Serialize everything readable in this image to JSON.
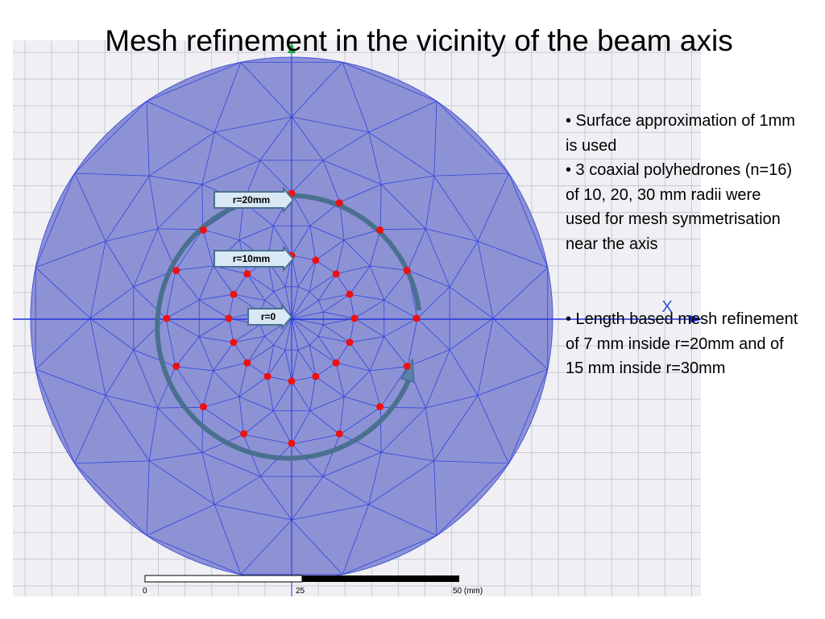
{
  "title": "Mesh refinement in the vicinity of the beam axis",
  "bullets": [
    "• Surface approximation of 1mm is used",
    "• 3 coaxial polyhedrones (n=16) of 10, 20, 30 mm radii were used for mesh symmetrisation near the axis",
    "• Length based mesh refinement of 7 mm inside r=20mm and of 15 mm inside r=30mm"
  ],
  "figure": {
    "radius_labels": [
      "r=20mm",
      "r=10mm",
      "r=0"
    ],
    "axis_label": "X",
    "scale_labels": [
      "0",
      "25",
      "50 (mm)"
    ]
  }
}
